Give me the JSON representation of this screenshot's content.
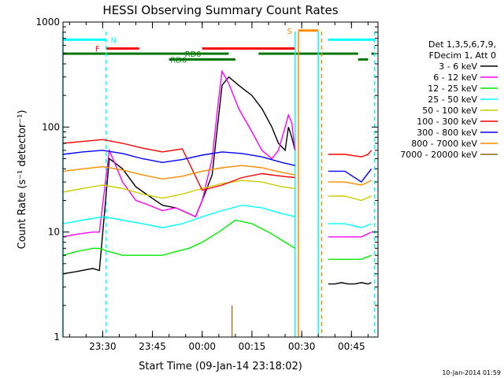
{
  "chart_data": {
    "type": "line",
    "title": "HESSI Observing Summary Count Rates",
    "xlabel": "Start Time (09-Jan-14 23:18:02)",
    "ylabel": "Count Rate (s⁻¹ detector⁻¹)",
    "ylog": true,
    "ylim": [
      1,
      1000
    ],
    "xlim": [
      "23:18:02",
      "00:53:00"
    ],
    "x_ticks": [
      "23:30",
      "23:45",
      "00:00",
      "00:15",
      "00:30",
      "00:45"
    ],
    "y_ticks": [
      "1",
      "10",
      "100",
      "1000"
    ],
    "grid": false,
    "legend_position": "right",
    "legend_header": [
      "Det 1,3,5,6,7,9,",
      "FDecim 1, Att 0"
    ],
    "series": [
      {
        "name": "3 - 6 keV",
        "color": "#000000",
        "x": [
          "23:18",
          "23:22",
          "23:27",
          "23:29",
          "23:32",
          "23:36",
          "23:40",
          "23:44",
          "23:48",
          "23:52",
          "23:56",
          "23:58",
          "00:00",
          "00:03",
          "00:05",
          "00:06",
          "00:08",
          "00:11",
          "00:15",
          "00:18",
          "00:21",
          "00:23",
          "00:25",
          "00:26",
          "00:27",
          "00:28"
        ],
        "values": [
          4,
          4.2,
          4.5,
          4.3,
          50,
          40,
          27,
          22,
          18,
          17,
          15,
          14,
          20,
          35,
          130,
          250,
          300,
          250,
          200,
          150,
          100,
          70,
          60,
          100,
          80,
          60
        ]
      },
      {
        "name": "6 - 12 keV",
        "color": "#ff00ff",
        "x": [
          "23:18",
          "23:22",
          "23:27",
          "23:29",
          "23:32",
          "23:36",
          "23:40",
          "23:44",
          "23:48",
          "23:52",
          "23:56",
          "23:58",
          "00:00",
          "00:03",
          "00:05",
          "00:06",
          "00:08",
          "00:11",
          "00:15",
          "00:18",
          "00:21",
          "00:23",
          "00:25",
          "00:26",
          "00:27",
          "00:28"
        ],
        "values": [
          9,
          9.5,
          10,
          10,
          60,
          30,
          20,
          18,
          16,
          17,
          15,
          14,
          20,
          50,
          190,
          340,
          260,
          150,
          90,
          60,
          50,
          60,
          100,
          130,
          110,
          60
        ]
      },
      {
        "name": "12 - 25 keV",
        "color": "#00ee00",
        "x": [
          "23:18",
          "23:22",
          "23:27",
          "23:29",
          "23:32",
          "23:36",
          "23:40",
          "23:44",
          "23:48",
          "23:52",
          "23:56",
          "00:00",
          "00:05",
          "00:10",
          "00:15",
          "00:20",
          "00:25",
          "00:28"
        ],
        "values": [
          6,
          6.5,
          7,
          7,
          6.5,
          6,
          6,
          6,
          6,
          6.5,
          7,
          8,
          10,
          13,
          12,
          10,
          8,
          7
        ]
      },
      {
        "name": "25 - 50 keV",
        "color": "#00ffff",
        "x": [
          "23:18",
          "23:24",
          "23:30",
          "23:36",
          "23:42",
          "23:48",
          "23:54",
          "00:00",
          "00:06",
          "00:12",
          "00:18",
          "00:24",
          "00:28"
        ],
        "values": [
          12,
          13,
          14,
          13,
          12,
          11,
          12,
          14,
          16,
          18,
          17,
          15,
          14
        ]
      },
      {
        "name": "50 - 100 keV",
        "color": "#cccc00",
        "x": [
          "23:18",
          "23:24",
          "23:30",
          "23:36",
          "23:42",
          "23:48",
          "23:54",
          "00:00",
          "00:06",
          "00:12",
          "00:18",
          "00:24",
          "00:28"
        ],
        "values": [
          24,
          26,
          28,
          26,
          23,
          21,
          23,
          26,
          29,
          31,
          30,
          27,
          26
        ]
      },
      {
        "name": "100 - 300 keV",
        "color": "#ff0000",
        "x": [
          "23:18",
          "23:24",
          "23:30",
          "23:36",
          "23:42",
          "23:48",
          "23:54",
          "00:00",
          "00:06",
          "00:12",
          "00:18",
          "00:24",
          "00:28"
        ],
        "values": [
          70,
          73,
          76,
          70,
          63,
          58,
          62,
          25,
          28,
          33,
          36,
          34,
          33
        ]
      },
      {
        "name": "300 - 800 keV",
        "color": "#0000ff",
        "x": [
          "23:18",
          "23:24",
          "23:30",
          "23:36",
          "23:42",
          "23:48",
          "23:54",
          "00:00",
          "00:06",
          "00:12",
          "00:18",
          "00:24",
          "00:28"
        ],
        "values": [
          55,
          58,
          60,
          56,
          50,
          46,
          49,
          54,
          58,
          56,
          52,
          46,
          43
        ]
      },
      {
        "name": "800 - 7000 keV",
        "color": "#ff8c00",
        "x": [
          "23:18",
          "23:24",
          "23:30",
          "23:36",
          "23:42",
          "23:48",
          "23:54",
          "00:00",
          "00:06",
          "00:12",
          "00:18",
          "00:24",
          "00:28"
        ],
        "values": [
          38,
          40,
          42,
          39,
          35,
          32,
          34,
          38,
          41,
          43,
          41,
          37,
          35
        ]
      },
      {
        "name": "7000 - 20000 keV",
        "color": "#8b6914",
        "x": [
          "00:09"
        ],
        "values": [
          2
        ]
      }
    ],
    "segments": [
      {
        "series": "3 - 6 keV",
        "x": [
          "00:38",
          "00:40",
          "00:42",
          "00:44",
          "00:46",
          "00:48",
          "00:50",
          "00:51"
        ],
        "values": [
          3.2,
          3.2,
          3.3,
          3.2,
          3.2,
          3.3,
          3.2,
          3.3
        ]
      },
      {
        "series": "6 - 12 keV",
        "x": [
          "00:38",
          "00:43",
          "00:48",
          "00:51"
        ],
        "values": [
          9,
          9,
          9,
          10
        ]
      },
      {
        "series": "12 - 25 keV",
        "x": [
          "00:38",
          "00:43",
          "00:48",
          "00:51"
        ],
        "values": [
          5.5,
          5.5,
          5.5,
          6
        ]
      },
      {
        "series": "25 - 50 keV",
        "x": [
          "00:38",
          "00:43",
          "00:48",
          "00:51"
        ],
        "values": [
          12,
          12,
          11,
          12
        ]
      },
      {
        "series": "50 - 100 keV",
        "x": [
          "00:38",
          "00:43",
          "00:48",
          "00:51"
        ],
        "values": [
          22,
          22,
          20,
          22
        ]
      },
      {
        "series": "100 - 300 keV",
        "x": [
          "00:38",
          "00:43",
          "00:48",
          "00:50",
          "00:51"
        ],
        "values": [
          55,
          55,
          52,
          55,
          60
        ]
      },
      {
        "series": "300 - 800 keV",
        "x": [
          "00:38",
          "00:43",
          "00:48",
          "00:51"
        ],
        "values": [
          38,
          38,
          30,
          40
        ]
      },
      {
        "series": "800 - 7000 keV",
        "x": [
          "00:38",
          "00:43",
          "00:48",
          "00:51"
        ],
        "values": [
          30,
          30,
          28,
          31
        ]
      }
    ],
    "flag_bars": [
      {
        "label": "N",
        "color": "#00ffff",
        "y": 680,
        "ranges": [
          [
            "23:18",
            "23:31"
          ],
          [
            "00:38",
            "00:52"
          ]
        ]
      },
      {
        "label": "F",
        "color": "#ff0000",
        "y": 560,
        "ranges": [
          [
            "23:31",
            "23:41"
          ],
          [
            "00:00",
            "00:28"
          ]
        ]
      },
      {
        "label": "S",
        "color": "#ff8c00",
        "y": 830,
        "ranges": [
          [
            "00:29",
            "00:35"
          ]
        ]
      },
      {
        "label": "RD0",
        "color": "#007700",
        "y": 500,
        "ranges": [
          [
            "23:18",
            "00:08"
          ],
          [
            "00:17",
            "00:47"
          ],
          [
            "00:51",
            "00:52"
          ]
        ]
      },
      {
        "label": "RD6",
        "color": "#007700",
        "y": 440,
        "ranges": [
          [
            "23:50",
            "00:10"
          ],
          [
            "00:47",
            "00:50"
          ]
        ]
      }
    ],
    "vertical_markers": [
      {
        "color": "#00ffff",
        "x": "23:18",
        "style": "solid"
      },
      {
        "color": "#00ffff",
        "x": "23:31",
        "style": "dashed"
      },
      {
        "color": "#00ffff",
        "x": "00:28",
        "style": "solid"
      },
      {
        "color": "#ff8c00",
        "x": "00:29",
        "style": "solid"
      },
      {
        "color": "#00ffff",
        "x": "00:35",
        "style": "solid"
      },
      {
        "color": "#ff8c00",
        "x": "00:36",
        "style": "dashed"
      },
      {
        "color": "#00ffff",
        "x": "00:52",
        "style": "dashed"
      }
    ],
    "footer_date": "10-Jan-2014 01:59"
  }
}
